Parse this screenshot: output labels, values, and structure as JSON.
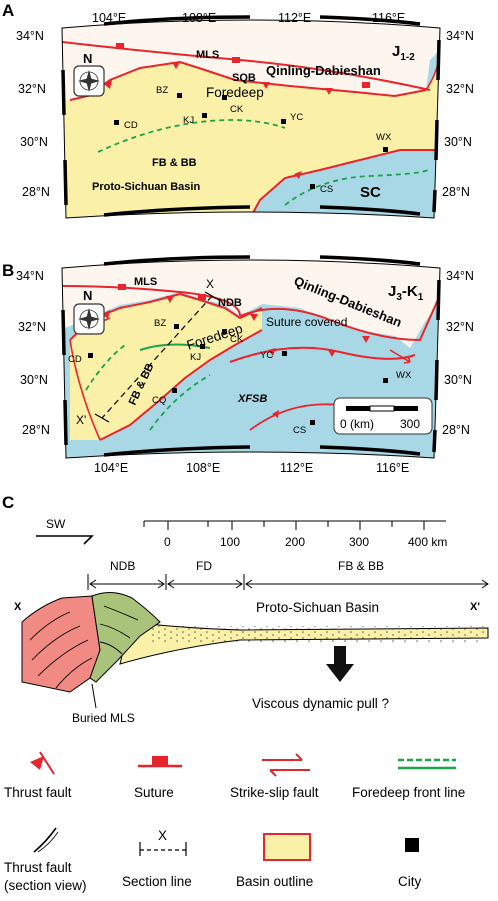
{
  "colors": {
    "ocean": "#a8d8e6",
    "basin": "#faf0a8",
    "orogen": "#fdf6ee",
    "fault": "#e8242c",
    "foredeep_front": "#1aa34a",
    "nappe_red": "#f08a82",
    "nappe_green": "#a9c47a",
    "frame": "#000000"
  },
  "panels": {
    "a": {
      "letter": "A",
      "lon_labels": [
        "104°E",
        "108°E",
        "112°E",
        "116°E"
      ],
      "lat_left": [
        "34°N",
        "32°N",
        "30°N",
        "28°N"
      ],
      "lat_right": [
        "34°N",
        "32°N",
        "30°N",
        "28°N"
      ],
      "age": "J",
      "age_sub": "1-2",
      "labels": {
        "mls": "MLS",
        "sqb": "SQB",
        "qinling": "Qinling-Dabieshan",
        "foredeep": "Foredeep",
        "fbbb": "FB & BB",
        "basin": "Proto-Sichuan Basin",
        "sc": "SC",
        "north": "N"
      },
      "cities": [
        "BZ",
        "CD",
        "KJ",
        "CK",
        "YC",
        "WX",
        "CS"
      ]
    },
    "b": {
      "letter": "B",
      "lon_labels": [
        "104°E",
        "108°E",
        "112°E",
        "116°E"
      ],
      "lat_left": [
        "34°N",
        "32°N",
        "30°N",
        "28°N"
      ],
      "lat_right": [
        "34°N",
        "32°N",
        "30°N",
        "28°N"
      ],
      "age": "J",
      "age_sub": "3",
      "age_tail": "-K",
      "age_tail_sub": "1",
      "labels": {
        "mls": "MLS",
        "ndb": "NDB",
        "qinling": "Qinling-Dabieshan",
        "suture_covered": "Suture covered",
        "foredeep": "Foredeep",
        "fbbb": "FB & BB",
        "xfsb": "XFSB",
        "north": "N",
        "section_x": "X",
        "section_x_prime": "X'"
      },
      "cities": [
        "BZ",
        "CK",
        "CD",
        "KJ",
        "YC",
        "CQ",
        "WX",
        "CS"
      ],
      "scale": {
        "left": "0 (km)",
        "right": "300"
      }
    },
    "c": {
      "letter": "C",
      "direction": "SW",
      "scale_ticks": [
        "0",
        "100",
        "200",
        "300",
        "400 km"
      ],
      "zones": [
        "NDB",
        "FD",
        "FB & BB"
      ],
      "ends": {
        "left": "X",
        "right": "X'"
      },
      "basin_label": "Proto-Sichuan Basin",
      "buried": "Buried MLS",
      "pull": "Viscous dynamic pull ?"
    }
  },
  "legend": {
    "row1": [
      "Thrust fault",
      "Suture",
      "Strike-slip fault",
      "Foredeep front line"
    ],
    "row2_item1_line1": "Thrust fault",
    "row2_item1_line2": "(section view)",
    "section_line_label": "Section line",
    "section_line_mark": "X",
    "basin_outline": "Basin outline",
    "city": "City"
  }
}
